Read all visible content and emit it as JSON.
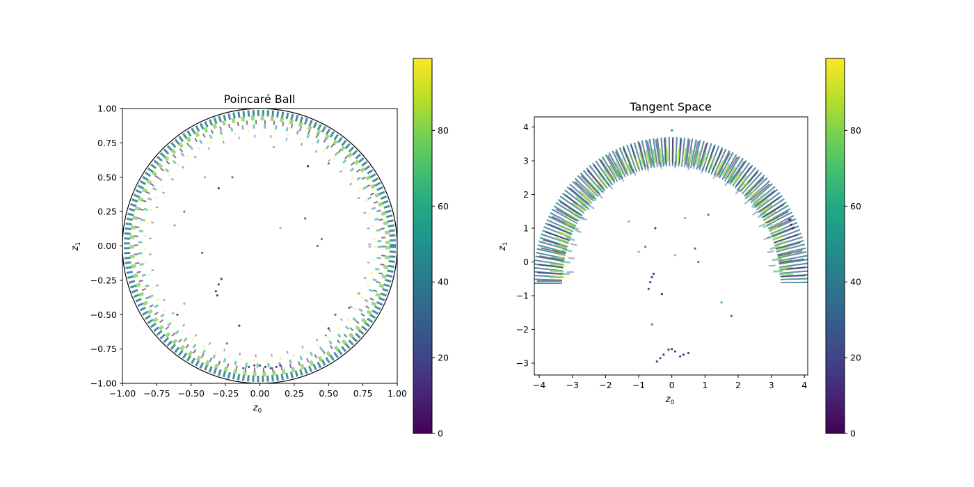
{
  "chart_data": [
    {
      "type": "scatter",
      "title": "Poincaré Ball",
      "xlabel": "z",
      "xlabel_sub": "0",
      "ylabel": "z",
      "ylabel_sub": "1",
      "xlim": [
        -1.0,
        1.0
      ],
      "ylim": [
        -1.0,
        1.0
      ],
      "xticks": [
        -1.0,
        -0.75,
        -0.5,
        -0.25,
        0.0,
        0.25,
        0.5,
        0.75,
        1.0
      ],
      "xtick_labels": [
        "−1.00",
        "−0.75",
        "−0.50",
        "−0.25",
        "0.00",
        "0.25",
        "0.50",
        "0.75",
        "1.00"
      ],
      "yticks": [
        -1.0,
        -0.75,
        -0.5,
        -0.25,
        0.0,
        0.25,
        0.5,
        0.75,
        1.0
      ],
      "ytick_labels": [
        "−1.00",
        "−0.75",
        "−0.50",
        "−0.25",
        "0.00",
        "0.25",
        "0.50",
        "0.75",
        "1.00"
      ],
      "grid": false,
      "boundary_circle_radius": 1.0,
      "colormap": "viridis",
      "color_range": [
        0,
        99
      ],
      "colorbar_ticks": [
        0,
        20,
        40,
        60,
        80
      ],
      "colorbar_tick_labels": [
        "0",
        "20",
        "40",
        "60",
        "80"
      ],
      "points": [
        {
          "x": -0.12,
          "y": -0.89,
          "c": 20
        },
        {
          "x": -0.08,
          "y": -0.88,
          "c": 20
        },
        {
          "x": -0.04,
          "y": -0.87,
          "c": 20
        },
        {
          "x": 0.0,
          "y": -0.87,
          "c": 20
        },
        {
          "x": 0.04,
          "y": -0.88,
          "c": 20
        },
        {
          "x": 0.08,
          "y": -0.89,
          "c": 20
        },
        {
          "x": 0.12,
          "y": -0.88,
          "c": 20
        },
        {
          "x": 0.15,
          "y": -0.87,
          "c": 20
        },
        {
          "x": -0.3,
          "y": -0.28,
          "c": 20
        },
        {
          "x": -0.32,
          "y": -0.33,
          "c": 20
        },
        {
          "x": -0.31,
          "y": -0.36,
          "c": 20
        },
        {
          "x": -0.28,
          "y": -0.24,
          "c": 20
        },
        {
          "x": -0.24,
          "y": -0.71,
          "c": 50
        },
        {
          "x": 0.15,
          "y": 0.13,
          "c": 80
        },
        {
          "x": 0.33,
          "y": 0.2,
          "c": 40
        },
        {
          "x": 0.42,
          "y": 0.0,
          "c": 50
        },
        {
          "x": -0.62,
          "y": 0.15,
          "c": 80
        },
        {
          "x": -0.55,
          "y": 0.25,
          "c": 60
        },
        {
          "x": 0.5,
          "y": 0.6,
          "c": 50
        },
        {
          "x": -0.6,
          "y": -0.5,
          "c": 20
        },
        {
          "x": -0.55,
          "y": -0.42,
          "c": 80
        },
        {
          "x": -0.4,
          "y": 0.5,
          "c": 80
        },
        {
          "x": -0.3,
          "y": 0.42,
          "c": 20
        },
        {
          "x": -0.2,
          "y": 0.5,
          "c": 50
        },
        {
          "x": 0.1,
          "y": 0.72,
          "c": 80
        },
        {
          "x": 0.35,
          "y": 0.58,
          "c": 10
        },
        {
          "x": 0.5,
          "y": -0.6,
          "c": 20
        },
        {
          "x": 0.48,
          "y": -0.65,
          "c": 70
        },
        {
          "x": 0.55,
          "y": -0.5,
          "c": 40
        },
        {
          "x": 0.65,
          "y": -0.45,
          "c": 50
        },
        {
          "x": 0.72,
          "y": -0.35,
          "c": 90
        },
        {
          "x": -0.15,
          "y": -0.58,
          "c": 20
        },
        {
          "x": 0.45,
          "y": 0.05,
          "c": 60
        },
        {
          "x": -0.42,
          "y": -0.05,
          "c": 50
        }
      ]
    },
    {
      "type": "scatter",
      "title": "Tangent Space",
      "xlabel": "z",
      "xlabel_sub": "0",
      "ylabel": "z",
      "ylabel_sub": "1",
      "xlim": [
        -4.15,
        4.1
      ],
      "ylim": [
        -3.35,
        4.3
      ],
      "xticks": [
        -4,
        -3,
        -2,
        -1,
        0,
        1,
        2,
        3,
        4
      ],
      "xtick_labels": [
        "−4",
        "−3",
        "−2",
        "−1",
        "0",
        "1",
        "2",
        "3",
        "4"
      ],
      "yticks": [
        -3,
        -2,
        -1,
        0,
        1,
        2,
        3,
        4
      ],
      "ytick_labels": [
        "−3",
        "−2",
        "−1",
        "0",
        "1",
        "2",
        "3",
        "4"
      ],
      "grid": false,
      "colormap": "viridis",
      "color_range": [
        0,
        99
      ],
      "colorbar_ticks": [
        0,
        20,
        40,
        60,
        80
      ],
      "colorbar_tick_labels": [
        "0",
        "20",
        "40",
        "60",
        "80"
      ],
      "points": [
        {
          "x": -0.45,
          "y": -2.95,
          "c": 20
        },
        {
          "x": -0.35,
          "y": -2.85,
          "c": 20
        },
        {
          "x": -0.25,
          "y": -2.75,
          "c": 20
        },
        {
          "x": -0.1,
          "y": -2.6,
          "c": 20
        },
        {
          "x": 0.0,
          "y": -2.58,
          "c": 20
        },
        {
          "x": 0.1,
          "y": -2.65,
          "c": 20
        },
        {
          "x": 0.25,
          "y": -2.8,
          "c": 20
        },
        {
          "x": 0.35,
          "y": -2.75,
          "c": 20
        },
        {
          "x": 0.5,
          "y": -2.7,
          "c": 20
        },
        {
          "x": -0.7,
          "y": -0.8,
          "c": 20
        },
        {
          "x": -0.65,
          "y": -0.6,
          "c": 20
        },
        {
          "x": -0.6,
          "y": -0.45,
          "c": 20
        },
        {
          "x": -0.55,
          "y": -0.35,
          "c": 20
        },
        {
          "x": -0.6,
          "y": -1.85,
          "c": 50
        },
        {
          "x": 0.1,
          "y": 0.2,
          "c": 80
        },
        {
          "x": 0.7,
          "y": 0.4,
          "c": 40
        },
        {
          "x": 0.8,
          "y": 0.0,
          "c": 50
        },
        {
          "x": -1.0,
          "y": 0.3,
          "c": 80
        },
        {
          "x": -0.8,
          "y": 0.45,
          "c": 60
        },
        {
          "x": 1.1,
          "y": 1.4,
          "c": 50
        },
        {
          "x": -0.3,
          "y": -0.95,
          "c": 10
        },
        {
          "x": 1.5,
          "y": -1.2,
          "c": 70
        },
        {
          "x": 1.8,
          "y": -1.6,
          "c": 40
        },
        {
          "x": -1.3,
          "y": 1.2,
          "c": 80
        },
        {
          "x": -0.5,
          "y": 1.0,
          "c": 20
        },
        {
          "x": 0.4,
          "y": 1.3,
          "c": 80
        },
        {
          "x": 3.6,
          "y": 1.1,
          "c": 5
        },
        {
          "x": 3.55,
          "y": 1.25,
          "c": 5
        },
        {
          "x": 3.65,
          "y": 1.0,
          "c": 5
        },
        {
          "x": 2.2,
          "y": 2.3,
          "c": 90
        },
        {
          "x": -2.0,
          "y": 2.4,
          "c": 70
        },
        {
          "x": 0.0,
          "y": 3.9,
          "c": 50
        }
      ]
    }
  ]
}
